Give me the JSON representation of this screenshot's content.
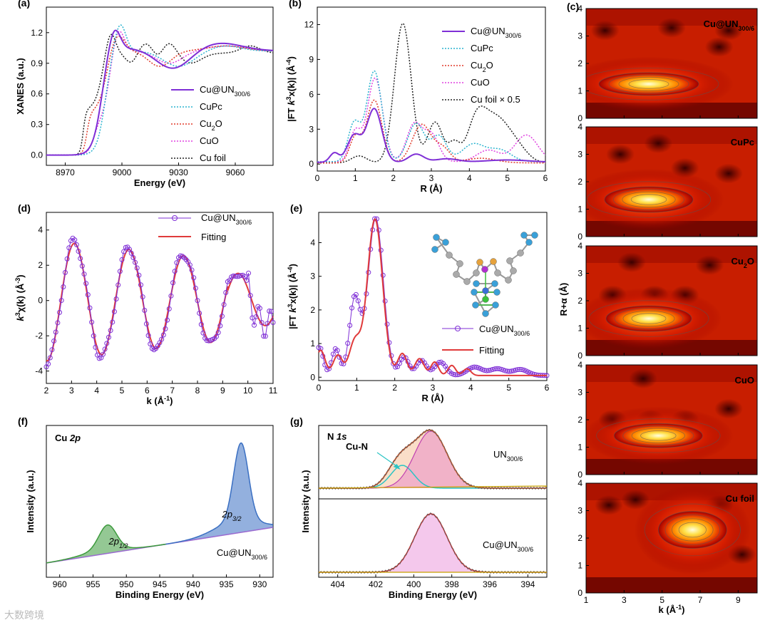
{
  "chart_data": [
    {
      "id": "a",
      "type": "line",
      "panel_label": "(a)",
      "xlabel": "Energy (eV)",
      "ylabel": "XANES (a.u.)",
      "xlim": [
        8960,
        9080
      ],
      "ylim": [
        -0.1,
        1.45
      ],
      "xticks": [
        8970,
        9000,
        9030,
        9060
      ],
      "yticks": [
        0.0,
        0.3,
        0.6,
        0.9,
        1.2
      ],
      "legend": [
        "Cu@UN300/6",
        "CuPc",
        "Cu2O",
        "CuO",
        "Cu foil"
      ]
    },
    {
      "id": "b",
      "type": "line",
      "panel_label": "(b)",
      "xlabel": "R (Å)",
      "ylabel": "|FT k3x(k)| (Å-4)",
      "xlim": [
        0,
        6
      ],
      "ylim": [
        -0.6,
        13.5
      ],
      "xticks": [
        0,
        1,
        2,
        3,
        4,
        5,
        6
      ],
      "yticks": [
        0,
        3,
        6,
        9,
        12
      ],
      "legend": [
        "Cu@UN300/6",
        "CuPc",
        "Cu2O",
        "CuO",
        "Cu foil × 0.5"
      ]
    },
    {
      "id": "c",
      "type": "heatmap",
      "panel_label": "(c)",
      "xlabel": "k (Å-1)",
      "ylabel": "R+α (Å)",
      "xlim": [
        1,
        10
      ],
      "ylim": [
        0,
        4
      ],
      "xticks": [
        1,
        3,
        5,
        7,
        9
      ],
      "yticks": [
        0,
        1,
        2,
        3,
        4
      ],
      "maps": [
        "Cu@UN300/6",
        "CuPc",
        "Cu2O",
        "CuO",
        "Cu foil"
      ]
    },
    {
      "id": "d",
      "type": "line",
      "panel_label": "(d)",
      "xlabel": "k (Å-1)",
      "ylabel": "k3χ(k) (Å-3)",
      "xlim": [
        2,
        11
      ],
      "ylim": [
        -4.7,
        5
      ],
      "xticks": [
        2,
        3,
        4,
        5,
        6,
        7,
        8,
        9,
        10,
        11
      ],
      "yticks": [
        -4,
        -2,
        0,
        2,
        4
      ],
      "legend": [
        "Cu@UN300/6",
        "Fitting"
      ]
    },
    {
      "id": "e",
      "type": "line",
      "panel_label": "(e)",
      "xlabel": "R (Å)",
      "ylabel": "|FT k3x(k)| (Å-4)",
      "xlim": [
        0,
        6
      ],
      "ylim": [
        -0.1,
        4.9
      ],
      "xticks": [
        0,
        1,
        2,
        3,
        4,
        5,
        6
      ],
      "yticks": [
        0,
        1,
        2,
        3,
        4
      ],
      "legend": [
        "Cu@UN300/6",
        "Fitting"
      ]
    },
    {
      "id": "f",
      "type": "line",
      "panel_label": "(f)",
      "xlabel": "Binding Energy (eV)",
      "ylabel": "Intensity (a.u.)",
      "xlim": [
        962,
        928
      ],
      "xticks": [
        960,
        955,
        950,
        945,
        940,
        935,
        930
      ],
      "title_text": "Cu 2p",
      "peaks": [
        "2p1/2",
        "2p3/2"
      ],
      "sample": "Cu@UN300/6"
    },
    {
      "id": "g",
      "type": "line",
      "panel_label": "(g)",
      "xlabel": "Binding Energy (eV)",
      "ylabel": "Intensity (a.u.)",
      "xlim": [
        405,
        393
      ],
      "xticks": [
        404,
        402,
        400,
        398,
        396,
        394
      ],
      "title_text": "N 1s",
      "component": "Cu-N",
      "samples": [
        "UN300/6",
        "Cu@UN300/6"
      ]
    }
  ],
  "colors": {
    "cu_un": "#7f2fd6",
    "cupc": "#2ab3cf",
    "cu2o": "#e03a2a",
    "cuo": "#e040e0",
    "cufoil": "#222222",
    "fit": "#e03a3a",
    "blue_peak": "#3a6fc2",
    "green_peak": "#3c9a3c",
    "baseline": "#9a6ad0",
    "pink_peak": "#e060c8",
    "cyan_peak": "#2ac4c4"
  },
  "watermark": "大数跨境"
}
